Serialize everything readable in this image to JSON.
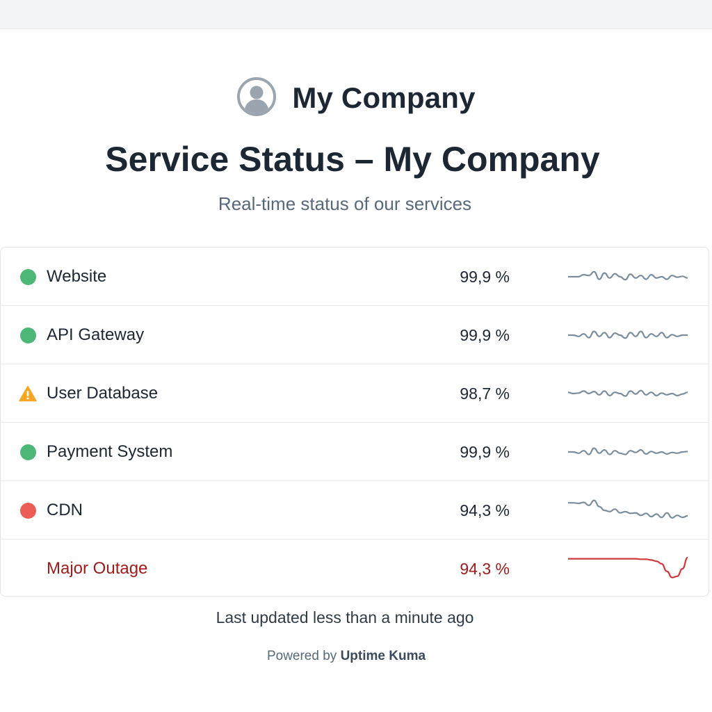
{
  "brand": {
    "name": "My Company",
    "avatar_icon": "user-circle-icon"
  },
  "page": {
    "title": "Service Status – My Company",
    "subtitle": "Real-time status of our services"
  },
  "colors": {
    "up": "#4cb776",
    "down": "#ec5d56",
    "warning": "#f5a623",
    "outage": "#a11b1b",
    "sparkline": "#7a8d9c",
    "sparkline_outage": "#d0393b"
  },
  "services": [
    {
      "name": "Website",
      "status": "up",
      "uptime": "99,9 %",
      "trend": [
        0.5,
        0.5,
        0.5,
        0.42,
        0.45,
        0.3,
        0.6,
        0.35,
        0.55,
        0.38,
        0.5,
        0.62,
        0.4,
        0.55,
        0.45,
        0.6,
        0.42,
        0.55,
        0.5,
        0.6,
        0.45,
        0.52,
        0.48,
        0.55
      ]
    },
    {
      "name": "API Gateway",
      "status": "up",
      "uptime": "99,9 %",
      "trend": [
        0.5,
        0.5,
        0.55,
        0.45,
        0.6,
        0.35,
        0.55,
        0.4,
        0.6,
        0.42,
        0.5,
        0.62,
        0.4,
        0.55,
        0.35,
        0.6,
        0.45,
        0.55,
        0.4,
        0.6,
        0.48,
        0.55,
        0.5,
        0.5
      ]
    },
    {
      "name": "User Database",
      "status": "warning",
      "uptime": "98,7 %",
      "trend": [
        0.45,
        0.5,
        0.48,
        0.4,
        0.5,
        0.42,
        0.55,
        0.4,
        0.58,
        0.45,
        0.5,
        0.6,
        0.4,
        0.52,
        0.38,
        0.55,
        0.45,
        0.58,
        0.48,
        0.55,
        0.5,
        0.58,
        0.52,
        0.45
      ]
    },
    {
      "name": "Payment System",
      "status": "up",
      "uptime": "99,9 %",
      "trend": [
        0.5,
        0.5,
        0.55,
        0.45,
        0.6,
        0.35,
        0.55,
        0.42,
        0.6,
        0.45,
        0.55,
        0.6,
        0.45,
        0.52,
        0.42,
        0.58,
        0.48,
        0.55,
        0.5,
        0.58,
        0.52,
        0.55,
        0.5,
        0.48
      ]
    },
    {
      "name": "CDN",
      "status": "down",
      "uptime": "94,3 %",
      "trend": [
        0.2,
        0.2,
        0.22,
        0.18,
        0.3,
        0.1,
        0.35,
        0.5,
        0.55,
        0.45,
        0.6,
        0.55,
        0.62,
        0.6,
        0.7,
        0.62,
        0.75,
        0.65,
        0.78,
        0.6,
        0.8,
        0.7,
        0.78,
        0.72
      ]
    },
    {
      "name": "Major Outage",
      "status": "outage",
      "uptime": "94,3 %",
      "trend": [
        0.1,
        0.1,
        0.1,
        0.1,
        0.1,
        0.1,
        0.1,
        0.1,
        0.1,
        0.1,
        0.1,
        0.1,
        0.1,
        0.1,
        0.12,
        0.12,
        0.15,
        0.2,
        0.3,
        0.6,
        0.85,
        0.8,
        0.5,
        0.05
      ]
    }
  ],
  "footer": {
    "updated": "Last updated less than a minute ago",
    "powered_prefix": "Powered by",
    "powered_link": "Uptime Kuma"
  }
}
